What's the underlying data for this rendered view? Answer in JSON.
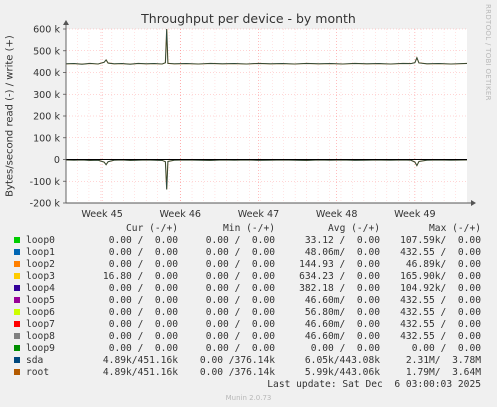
{
  "chart_data": {
    "type": "line",
    "title": "Throughput per device - by month",
    "ylabel": "Bytes/second read (-) / write (+)",
    "ylim": [
      -200000,
      600000
    ],
    "yticks": [
      {
        "v": 600000,
        "label": "600 k"
      },
      {
        "v": 500000,
        "label": "500 k"
      },
      {
        "v": 400000,
        "label": "400 k"
      },
      {
        "v": 300000,
        "label": "300 k"
      },
      {
        "v": 200000,
        "label": "200 k"
      },
      {
        "v": 100000,
        "label": "100 k"
      },
      {
        "v": 0,
        "label": "0"
      },
      {
        "v": -100000,
        "label": "-100 k"
      },
      {
        "v": -200000,
        "label": "-200 k"
      }
    ],
    "xlim": [
      0,
      100
    ],
    "xticks": [
      {
        "v": 9,
        "label": "Week 45"
      },
      {
        "v": 28.5,
        "label": "Week 46"
      },
      {
        "v": 48,
        "label": "Week 47"
      },
      {
        "v": 67.5,
        "label": "Week 48"
      },
      {
        "v": 87,
        "label": "Week 49"
      }
    ],
    "grid": true,
    "series": [
      {
        "name": "sda",
        "color": "#004f73",
        "write": [
          [
            0,
            440000
          ],
          [
            2,
            441000
          ],
          [
            4,
            438000
          ],
          [
            6,
            442000
          ],
          [
            8,
            439000
          ],
          [
            9.5,
            447000
          ],
          [
            10,
            458000
          ],
          [
            10.5,
            443000
          ],
          [
            12,
            440000
          ],
          [
            14,
            441000
          ],
          [
            16,
            438000
          ],
          [
            18,
            442000
          ],
          [
            20,
            440000
          ],
          [
            22,
            441000
          ],
          [
            24,
            439000
          ],
          [
            24.8,
            445000
          ],
          [
            25.1,
            600000
          ],
          [
            25.4,
            442000
          ],
          [
            27,
            440000
          ],
          [
            30,
            441000
          ],
          [
            33,
            439000
          ],
          [
            36,
            442000
          ],
          [
            39,
            440000
          ],
          [
            42,
            441000
          ],
          [
            45,
            439000
          ],
          [
            48,
            442000
          ],
          [
            51,
            440000
          ],
          [
            54,
            441000
          ],
          [
            57,
            439000
          ],
          [
            60,
            442000
          ],
          [
            63,
            440000
          ],
          [
            66,
            441000
          ],
          [
            69,
            439000
          ],
          [
            72,
            442000
          ],
          [
            75,
            440000
          ],
          [
            78,
            441000
          ],
          [
            81,
            439000
          ],
          [
            84,
            442000
          ],
          [
            86,
            441000
          ],
          [
            87,
            445000
          ],
          [
            87.5,
            468000
          ],
          [
            88,
            444000
          ],
          [
            90,
            440000
          ],
          [
            93,
            441000
          ],
          [
            96,
            439000
          ],
          [
            100,
            442000
          ]
        ],
        "read": [
          [
            0,
            -2000
          ],
          [
            2,
            -3000
          ],
          [
            4,
            -2500
          ],
          [
            6,
            -4000
          ],
          [
            8,
            -3000
          ],
          [
            9.5,
            -12000
          ],
          [
            10,
            -24000
          ],
          [
            10.5,
            -10000
          ],
          [
            12,
            -3000
          ],
          [
            14,
            -2500
          ],
          [
            16,
            -4000
          ],
          [
            18,
            -3000
          ],
          [
            20,
            -2000
          ],
          [
            22,
            -3000
          ],
          [
            24,
            -4000
          ],
          [
            24.8,
            -10000
          ],
          [
            25.1,
            -138000
          ],
          [
            25.4,
            -9000
          ],
          [
            27,
            -3000
          ],
          [
            30,
            -2500
          ],
          [
            33,
            -3000
          ],
          [
            36,
            -4000
          ],
          [
            39,
            -2000
          ],
          [
            42,
            -3000
          ],
          [
            45,
            -2500
          ],
          [
            48,
            -3500
          ],
          [
            51,
            -3000
          ],
          [
            54,
            -2000
          ],
          [
            57,
            -3000
          ],
          [
            60,
            -4000
          ],
          [
            63,
            -2500
          ],
          [
            66,
            -3000
          ],
          [
            69,
            -2000
          ],
          [
            72,
            -3500
          ],
          [
            75,
            -3000
          ],
          [
            78,
            -2500
          ],
          [
            81,
            -3000
          ],
          [
            84,
            -2000
          ],
          [
            86,
            -3000
          ],
          [
            87,
            -12000
          ],
          [
            87.5,
            -28000
          ],
          [
            88,
            -9000
          ],
          [
            90,
            -3000
          ],
          [
            93,
            -2500
          ],
          [
            96,
            -3000
          ],
          [
            100,
            -2000
          ]
        ]
      }
    ]
  },
  "header": {
    "title": "Throughput per device - by month",
    "side_text": "RRDTOOL / TOBI OETIKER"
  },
  "legend": {
    "columns": [
      "Cur (-/+)",
      "Min (-/+)",
      "Avg (-/+)",
      "Max (-/+)"
    ],
    "rows": [
      {
        "name": "loop0",
        "color": "#00cc00",
        "cur": "0.00 /  0.00",
        "min": "0.00 /  0.00",
        "avg": "33.12 /  0.00",
        "max": "107.59k/  0.00"
      },
      {
        "name": "loop1",
        "color": "#0066b3",
        "cur": "0.00 /  0.00",
        "min": "0.00 /  0.00",
        "avg": "48.06m/  0.00",
        "max": "432.55 /  0.00"
      },
      {
        "name": "loop2",
        "color": "#ff8000",
        "cur": "0.00 /  0.00",
        "min": "0.00 /  0.00",
        "avg": "144.93 /  0.00",
        "max": "46.89k/  0.00"
      },
      {
        "name": "loop3",
        "color": "#ffcc00",
        "cur": "16.80 /  0.00",
        "min": "0.00 /  0.00",
        "avg": "634.23 /  0.00",
        "max": "165.90k/  0.00"
      },
      {
        "name": "loop4",
        "color": "#330099",
        "cur": "0.00 /  0.00",
        "min": "0.00 /  0.00",
        "avg": "382.18 /  0.00",
        "max": "104.92k/  0.00"
      },
      {
        "name": "loop5",
        "color": "#990099",
        "cur": "0.00 /  0.00",
        "min": "0.00 /  0.00",
        "avg": "46.60m/  0.00",
        "max": "432.55 /  0.00"
      },
      {
        "name": "loop6",
        "color": "#ccff00",
        "cur": "0.00 /  0.00",
        "min": "0.00 /  0.00",
        "avg": "56.80m/  0.00",
        "max": "432.55 /  0.00"
      },
      {
        "name": "loop7",
        "color": "#ff0000",
        "cur": "0.00 /  0.00",
        "min": "0.00 /  0.00",
        "avg": "46.60m/  0.00",
        "max": "432.55 /  0.00"
      },
      {
        "name": "loop8",
        "color": "#808080",
        "cur": "0.00 /  0.00",
        "min": "0.00 /  0.00",
        "avg": "46.60m/  0.00",
        "max": "432.55 /  0.00"
      },
      {
        "name": "loop9",
        "color": "#008f00",
        "cur": "0.00 /  0.00",
        "min": "0.00 /  0.00",
        "avg": "0.00 /  0.00",
        "max": "0.00 /  0.00"
      },
      {
        "name": "sda",
        "color": "#00487d",
        "cur": "4.89k/451.16k",
        "min": "0.00 /376.14k",
        "avg": "6.05k/443.08k",
        "max": "2.31M/  3.78M"
      },
      {
        "name": "root",
        "color": "#b35a00",
        "cur": "4.89k/451.16k",
        "min": "0.00 /376.14k",
        "avg": "5.99k/443.06k",
        "max": "1.79M/  3.64M"
      }
    ],
    "last_update": "Last update: Sat Dec  6 03:00:03 2025"
  },
  "footer": {
    "text": "Munin 2.0.73"
  }
}
